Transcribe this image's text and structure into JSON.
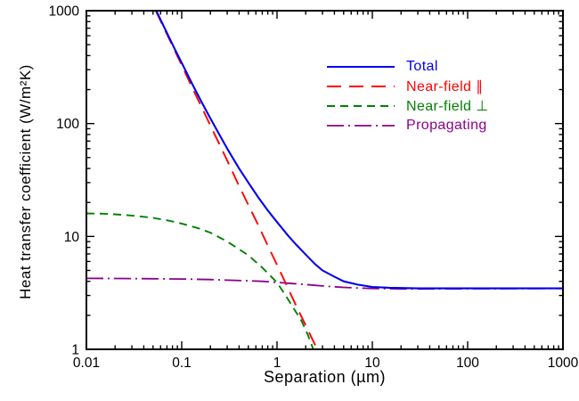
{
  "figure": {
    "background": "#ffffff",
    "frame_color": "#000000",
    "text_color": "#000000"
  },
  "chart_data": {
    "type": "line",
    "title": "",
    "xlabel": "Separation (µm)",
    "ylabel": "Heat transfer coefficient (W/m²K)",
    "x_scale": "log",
    "y_scale": "log",
    "xlim": [
      0.01,
      1000
    ],
    "ylim": [
      1,
      1000
    ],
    "grid": false,
    "legend_position": "inside upper right",
    "x_ticks": [
      {
        "v": 0.01,
        "label": "0.01"
      },
      {
        "v": 0.1,
        "label": "0.1"
      },
      {
        "v": 1,
        "label": "1"
      },
      {
        "v": 10,
        "label": "10"
      },
      {
        "v": 100,
        "label": "100"
      },
      {
        "v": 1000,
        "label": "1000"
      }
    ],
    "y_ticks": [
      {
        "v": 1,
        "label": "1"
      },
      {
        "v": 10,
        "label": "10"
      },
      {
        "v": 100,
        "label": "100"
      },
      {
        "v": 1000,
        "label": "1000"
      }
    ],
    "series": [
      {
        "id": "total",
        "name": "Total",
        "color": "#0000ee",
        "dash": "solid",
        "width": 2.1,
        "points": [
          [
            0.054,
            1000
          ],
          [
            0.07,
            636
          ],
          [
            0.085,
            454
          ],
          [
            0.1,
            345
          ],
          [
            0.13,
            221
          ],
          [
            0.16,
            158
          ],
          [
            0.2,
            111
          ],
          [
            0.25,
            79
          ],
          [
            0.3,
            60
          ],
          [
            0.4,
            40
          ],
          [
            0.5,
            30
          ],
          [
            0.64,
            22
          ],
          [
            0.8,
            17
          ],
          [
            1.0,
            13.4
          ],
          [
            1.3,
            10.2
          ],
          [
            1.6,
            8.4
          ],
          [
            2.0,
            6.9
          ],
          [
            2.5,
            5.7
          ],
          [
            3.0,
            5.0
          ],
          [
            4.0,
            4.4
          ],
          [
            5.0,
            4.0
          ],
          [
            7.0,
            3.74
          ],
          [
            10,
            3.57
          ],
          [
            15,
            3.51
          ],
          [
            20,
            3.49
          ],
          [
            30,
            3.47
          ],
          [
            50,
            3.47
          ],
          [
            100,
            3.47
          ],
          [
            300,
            3.47
          ],
          [
            1000,
            3.47
          ]
        ]
      },
      {
        "id": "near-field-parallel",
        "name": "Near-field ∥",
        "color": "#ff0000",
        "dash": "16,9",
        "width": 1.9,
        "points": [
          [
            0.0533,
            1000
          ],
          [
            0.07,
            620
          ],
          [
            0.085,
            440
          ],
          [
            0.1,
            330
          ],
          [
            0.13,
            205
          ],
          [
            0.16,
            143
          ],
          [
            0.2,
            96
          ],
          [
            0.25,
            65
          ],
          [
            0.3,
            47
          ],
          [
            0.4,
            28
          ],
          [
            0.5,
            19
          ],
          [
            0.64,
            12.4
          ],
          [
            0.8,
            8.3
          ],
          [
            1.0,
            5.6
          ],
          [
            1.3,
            3.5
          ],
          [
            1.6,
            2.4
          ],
          [
            2.0,
            1.63
          ],
          [
            2.5,
            1.1
          ],
          [
            2.77,
            1.0
          ]
        ]
      },
      {
        "id": "near-field-perpendicular",
        "name": "Near-field ⊥",
        "color": "#008000",
        "dash": "9,6",
        "width": 1.9,
        "points": [
          [
            0.01,
            16
          ],
          [
            0.015,
            15.9
          ],
          [
            0.02,
            15.7
          ],
          [
            0.03,
            15.3
          ],
          [
            0.05,
            14.6
          ],
          [
            0.07,
            13.9
          ],
          [
            0.1,
            13.0
          ],
          [
            0.15,
            11.8
          ],
          [
            0.2,
            10.8
          ],
          [
            0.3,
            9.0
          ],
          [
            0.4,
            7.7
          ],
          [
            0.5,
            6.8
          ],
          [
            0.7,
            5.3
          ],
          [
            0.85,
            4.5
          ],
          [
            1.0,
            3.9
          ],
          [
            1.2,
            3.1
          ],
          [
            1.5,
            2.3
          ],
          [
            1.8,
            1.8
          ],
          [
            2.1,
            1.35
          ],
          [
            2.4,
            1.0
          ]
        ]
      },
      {
        "id": "propagating",
        "name": "Propagating",
        "color": "#8b008b",
        "dash": "19,5,2,5",
        "width": 1.8,
        "points": [
          [
            0.01,
            4.25
          ],
          [
            0.02,
            4.24
          ],
          [
            0.05,
            4.22
          ],
          [
            0.1,
            4.2
          ],
          [
            0.2,
            4.15
          ],
          [
            0.3,
            4.1
          ],
          [
            0.5,
            4.05
          ],
          [
            0.7,
            4.0
          ],
          [
            1.0,
            3.92
          ],
          [
            1.5,
            3.82
          ],
          [
            2.0,
            3.75
          ],
          [
            3.0,
            3.64
          ],
          [
            5.0,
            3.54
          ],
          [
            7.0,
            3.49
          ],
          [
            10,
            3.46
          ],
          [
            15,
            3.44
          ],
          [
            20,
            3.43
          ],
          [
            30,
            3.43
          ],
          [
            50,
            3.43
          ],
          [
            100,
            3.44
          ],
          [
            300,
            3.45
          ],
          [
            1000,
            3.46
          ]
        ]
      }
    ]
  }
}
